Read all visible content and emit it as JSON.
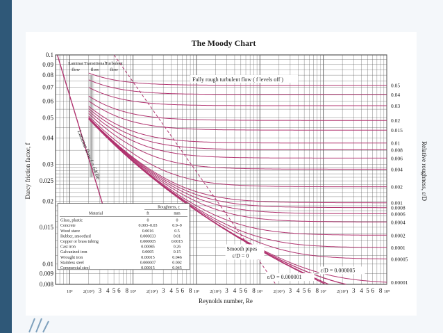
{
  "chart_data": {
    "type": "line",
    "title": "The Moody Chart",
    "xlabel": "Reynolds number, Re",
    "ylabel": "Darcy friction factor, f",
    "y2label": "Relative roughness, ε/D",
    "x_scale": "log",
    "y_scale": "log",
    "xlim": [
      600,
      100000000
    ],
    "ylim": [
      0.008,
      0.1
    ],
    "grid": true,
    "x_tick_labels": [
      "10³",
      "2(10³)",
      "3",
      "4",
      "5",
      "6",
      "8",
      "10⁴",
      "2(10⁴)",
      "3",
      "4",
      "5",
      "6",
      "8",
      "10⁵",
      "2(10⁵)",
      "3",
      "4",
      "5",
      "6",
      "8",
      "10⁶",
      "2(10⁶)",
      "3",
      "4",
      "5",
      "6",
      "8",
      "10⁷",
      "2(10⁷)",
      "3",
      "4",
      "5",
      "6",
      "8",
      "10⁸"
    ],
    "x_tick_values": [
      1000,
      2000,
      3000,
      4000,
      5000,
      6000,
      8000,
      10000,
      20000,
      30000,
      40000,
      50000,
      60000,
      80000,
      100000,
      200000,
      300000,
      400000,
      500000,
      600000,
      800000,
      1000000,
      2000000,
      3000000,
      4000000,
      5000000,
      6000000,
      8000000,
      10000000,
      20000000,
      30000000,
      40000000,
      50000000,
      60000000,
      80000000,
      100000000
    ],
    "y_tick_labels": [
      "0.1",
      "0.09",
      "0.08",
      "0.07",
      "0.06",
      "0.05",
      "0.04",
      "0.03",
      "0.025",
      "0.02",
      "0.015",
      "0.01",
      "0.009",
      "0.008"
    ],
    "y_tick_values": [
      0.1,
      0.09,
      0.08,
      0.07,
      0.06,
      0.05,
      0.04,
      0.03,
      0.025,
      0.02,
      0.015,
      0.01,
      0.009,
      0.008
    ],
    "roughness_labels": [
      "0.05",
      "0.04",
      "0.03",
      "0.02",
      "0.015",
      "0.01",
      "0.008",
      "0.006",
      "0.004",
      "0.002",
      "0.001",
      "0.0008",
      "0.0006",
      "0.0004",
      "0.0002",
      "0.0001",
      "0.00005",
      "0.00001"
    ],
    "roughness_values": [
      0.05,
      0.04,
      0.03,
      0.02,
      0.015,
      0.01,
      0.008,
      0.006,
      0.004,
      0.002,
      0.001,
      0.0008,
      0.0006,
      0.0004,
      0.0002,
      0.0001,
      5e-05,
      1e-05
    ],
    "laminar": {
      "label": "Laminar flow f = 64/Re",
      "constant": 64
    },
    "regions": [
      "Laminar flow",
      "Transitional flow",
      "Turbulent flow"
    ],
    "annotations": {
      "fully_rough": "Fully rough turbulent flow ( f levels off )",
      "smooth": "Smooth pipes",
      "smooth_eq": "ε/D = 0",
      "eD_5e-6": "ε/D = 0.000005",
      "eD_1e-6": "ε/D = 0.000001"
    },
    "roughness_table": {
      "title": "Roughness, ε",
      "headers": [
        "Material",
        "ft",
        "mm"
      ],
      "rows": [
        [
          "Glass, plastic",
          "0",
          "0"
        ],
        [
          "Concrete",
          "0.003–0.03",
          "0.9–9"
        ],
        [
          "Wood stave",
          "0.0016",
          "0.5"
        ],
        [
          "Rubber, smoothed",
          "0.000033",
          "0.01"
        ],
        [
          "Copper or brass tubing",
          "0.000005",
          "0.0015"
        ],
        [
          "Cast iron",
          "0.00085",
          "0.26"
        ],
        [
          "Galvanized iron",
          "0.0005",
          "0.15"
        ],
        [
          "Wrought iron",
          "0.00015",
          "0.046"
        ],
        [
          "Stainless steel",
          "0.000007",
          "0.002"
        ],
        [
          "Commercial steel",
          "0.00015",
          "0.045"
        ]
      ]
    },
    "colors": {
      "curve": "#b0336f",
      "grid": "#555555",
      "slide_bar": "#2f5878"
    }
  }
}
